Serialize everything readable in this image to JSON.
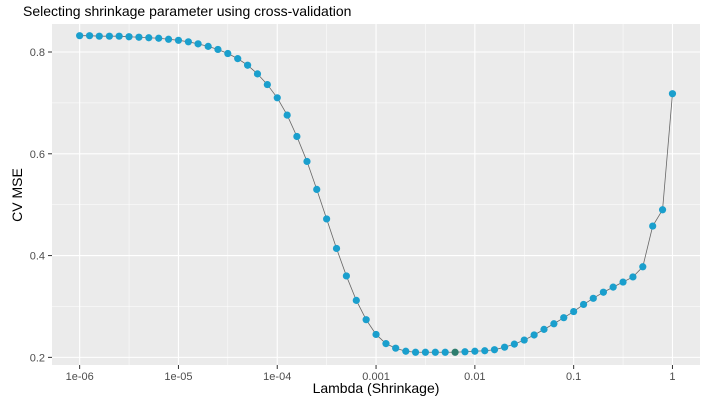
{
  "chart_data": {
    "type": "scatter",
    "title": "Selecting shrinkage parameter using cross-validation",
    "xlabel": "Lambda (Shrinkage)",
    "ylabel": "CV MSE",
    "x_scale": "log10",
    "x_ticks": [
      {
        "value": 1e-06,
        "label": "1e-06"
      },
      {
        "value": 1e-05,
        "label": "1e-05"
      },
      {
        "value": 0.0001,
        "label": "1e-04"
      },
      {
        "value": 0.001,
        "label": "0.001"
      },
      {
        "value": 0.01,
        "label": "0.01"
      },
      {
        "value": 0.1,
        "label": "0.1"
      },
      {
        "value": 1,
        "label": "1"
      }
    ],
    "y_ticks": [
      {
        "value": 0.2,
        "label": "0.2"
      },
      {
        "value": 0.4,
        "label": "0.4"
      },
      {
        "value": 0.6,
        "label": "0.6"
      },
      {
        "value": 0.8,
        "label": "0.8"
      }
    ],
    "xlim": [
      5.25e-07,
      1.9
    ],
    "ylim": [
      0.185,
      0.855
    ],
    "grid": true,
    "colors": {
      "panel": "#ebebeb",
      "grid": "#ffffff",
      "point": "#1a9fcd",
      "highlight": "#2e7d6e",
      "line": "#666666"
    },
    "highlight_index": 38,
    "series": [
      {
        "x": [
          1e-06,
          1.26e-06,
          1.58e-06,
          2e-06,
          2.51e-06,
          3.16e-06,
          3.98e-06,
          5.01e-06,
          6.31e-06,
          7.94e-06,
          1e-05,
          1.26e-05,
          1.58e-05,
          2e-05,
          2.51e-05,
          3.16e-05,
          3.98e-05,
          5.01e-05,
          6.31e-05,
          7.94e-05,
          0.0001,
          0.000126,
          0.000158,
          0.0002,
          0.000251,
          0.000316,
          0.000398,
          0.000501,
          0.000631,
          0.000794,
          0.001,
          0.00126,
          0.00158,
          0.002,
          0.00251,
          0.00316,
          0.00398,
          0.00501,
          0.00631,
          0.00794,
          0.01,
          0.0126,
          0.0158,
          0.02,
          0.0251,
          0.0316,
          0.0398,
          0.0501,
          0.0631,
          0.0794,
          0.1,
          0.126,
          0.158,
          0.2,
          0.251,
          0.316,
          0.398,
          0.501,
          0.631,
          0.794,
          1
        ],
        "y": [
          0.832,
          0.832,
          0.831,
          0.831,
          0.831,
          0.83,
          0.829,
          0.828,
          0.827,
          0.825,
          0.823,
          0.82,
          0.816,
          0.811,
          0.805,
          0.797,
          0.787,
          0.774,
          0.757,
          0.736,
          0.71,
          0.676,
          0.634,
          0.585,
          0.53,
          0.472,
          0.414,
          0.36,
          0.312,
          0.274,
          0.245,
          0.227,
          0.218,
          0.212,
          0.21,
          0.21,
          0.21,
          0.21,
          0.21,
          0.211,
          0.212,
          0.213,
          0.215,
          0.22,
          0.226,
          0.234,
          0.244,
          0.255,
          0.266,
          0.278,
          0.29,
          0.304,
          0.316,
          0.328,
          0.338,
          0.348,
          0.358,
          0.378,
          0.458,
          0.49,
          0.718
        ]
      }
    ]
  }
}
